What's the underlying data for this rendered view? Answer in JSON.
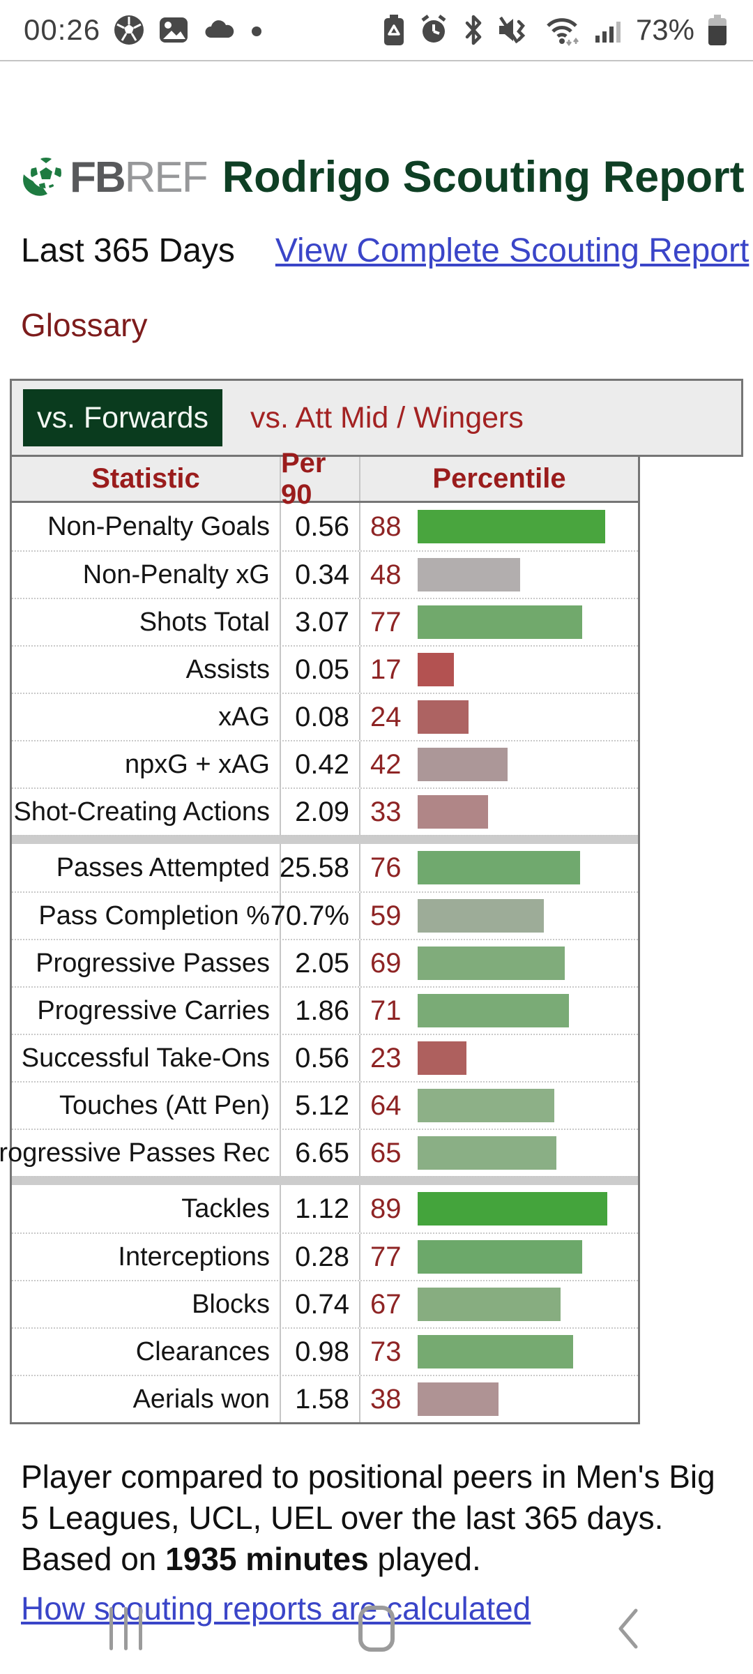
{
  "status_bar": {
    "time": "00:26",
    "battery_pct": "73%",
    "left_icons": [
      "soccer-ball-icon",
      "gallery-icon",
      "cloud-icon",
      "notification-dot-icon"
    ],
    "right_icons": [
      "battery-saver-icon",
      "alarm-icon",
      "bluetooth-icon",
      "vibrate-mute-icon",
      "wifi-icon",
      "signal-icon",
      "battery-icon"
    ]
  },
  "header": {
    "logo_fb": "FB",
    "logo_ref": "REF",
    "title": "Rodrigo Scouting Report",
    "period": "Last 365 Days",
    "complete_link": "View Complete Scouting Report",
    "glossary": "Glossary"
  },
  "tabs": {
    "active": "vs. Forwards",
    "inactive": "vs. Att Mid / Wingers"
  },
  "table": {
    "columns": [
      "Statistic",
      "Per 90",
      "Percentile"
    ],
    "groups": [
      [
        {
          "label": "Non-Penalty Goals",
          "per90": "0.56",
          "percentile": 88,
          "color": "#49a53e"
        },
        {
          "label": "Non-Penalty xG",
          "per90": "0.34",
          "percentile": 48,
          "color": "#b2aeae"
        },
        {
          "label": "Shots Total",
          "per90": "3.07",
          "percentile": 77,
          "color": "#71a96c"
        },
        {
          "label": "Assists",
          "per90": "0.05",
          "percentile": 17,
          "color": "#b35251"
        },
        {
          "label": "xAG",
          "per90": "0.08",
          "percentile": 24,
          "color": "#ad6362"
        },
        {
          "label": "npxG + xAG",
          "per90": "0.42",
          "percentile": 42,
          "color": "#ac9798"
        },
        {
          "label": "Shot-Creating Actions",
          "per90": "2.09",
          "percentile": 33,
          "color": "#b08687"
        }
      ],
      [
        {
          "label": "Passes Attempted",
          "per90": "25.58",
          "percentile": 76,
          "color": "#70a96e"
        },
        {
          "label": "Pass Completion %",
          "per90": "70.7%",
          "percentile": 59,
          "color": "#9dac98"
        },
        {
          "label": "Progressive Passes",
          "per90": "2.05",
          "percentile": 69,
          "color": "#80ac7b"
        },
        {
          "label": "Progressive Carries",
          "per90": "1.86",
          "percentile": 71,
          "color": "#7aab76"
        },
        {
          "label": "Successful Take-Ons",
          "per90": "0.56",
          "percentile": 23,
          "color": "#ae605e"
        },
        {
          "label": "Touches (Att Pen)",
          "per90": "5.12",
          "percentile": 64,
          "color": "#8db087"
        },
        {
          "label": "Progressive Passes Rec",
          "per90": "6.65",
          "percentile": 65,
          "color": "#8aaf85"
        }
      ],
      [
        {
          "label": "Tackles",
          "per90": "1.12",
          "percentile": 89,
          "color": "#44a43c"
        },
        {
          "label": "Interceptions",
          "per90": "0.28",
          "percentile": 77,
          "color": "#6ca86a"
        },
        {
          "label": "Blocks",
          "per90": "0.74",
          "percentile": 67,
          "color": "#87ad80"
        },
        {
          "label": "Clearances",
          "per90": "0.98",
          "percentile": 73,
          "color": "#76aa71"
        },
        {
          "label": "Aerials won",
          "per90": "1.58",
          "percentile": 38,
          "color": "#af9394"
        }
      ]
    ]
  },
  "footer": {
    "text_before_bold": "Player compared to positional peers in Men's Big 5 Leagues, UCL, UEL over the last 365 days. Based on ",
    "bold_text": "1935 minutes",
    "text_after_bold": " played.",
    "calc_link": "How scouting reports are calculated"
  },
  "nav_bar": {
    "icons": [
      "recents-icon",
      "home-icon",
      "back-icon"
    ]
  },
  "colors": {
    "title_green": "#0e3f24",
    "active_tab_bg": "#0a3b1e",
    "heading_red": "#9a1c1c",
    "pct_red": "#8e2424",
    "link_blue": "#3a45c8",
    "logo_green": "#1e7b41"
  }
}
